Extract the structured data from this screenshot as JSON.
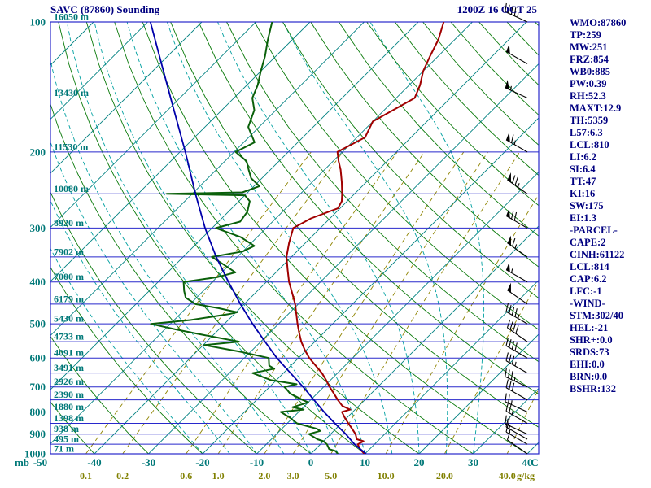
{
  "header": {
    "title": "SAVC (87860) Sounding",
    "datetime": "1200Z 16 OCT 25"
  },
  "indices": [
    "WMO:87860",
    "TP:259",
    "MW:251",
    "FRZ:854",
    "WB0:885",
    "PW:0.39",
    "RH:52.3",
    "MAXT:12.9",
    "TH:5359",
    "L57:6.3",
    "LCL:810",
    "LI:6.2",
    "SI:6.4",
    "TT:47",
    "KI:16",
    "SW:175",
    "EI:1.3",
    "-PARCEL-",
    "CAPE:2",
    "CINH:61122",
    "LCL:814",
    "CAP:6.2",
    "LFC:-1",
    "-WIND-",
    "STM:302/40",
    "HEL:-21",
    "SHR+:0.0",
    "SRDS:73",
    "EHI:0.0",
    "BRN:0.0",
    "BSHR:132"
  ],
  "axes": {
    "pressure_unit": "mb",
    "temp_unit": "C",
    "mixing_unit": "g/kg",
    "pressure_ticks": [
      100,
      200,
      300,
      400,
      500,
      600,
      700,
      800,
      900,
      1000
    ],
    "temp_ticks": [
      -50,
      -40,
      -30,
      -20,
      -10,
      0,
      10,
      20,
      30,
      40
    ],
    "mixing_ratio_ticks": [
      "0.1",
      "0.2",
      "0.6",
      "1.0",
      "2.0",
      "3.0",
      "5.0",
      "10.0",
      "20.0",
      "40.0"
    ],
    "heights": [
      {
        "p": 100,
        "label": "16050 m"
      },
      {
        "p": 150,
        "label": "13430 m"
      },
      {
        "p": 200,
        "label": "11530 m"
      },
      {
        "p": 250,
        "label": "10080 m"
      },
      {
        "p": 300,
        "label": "8920 m"
      },
      {
        "p": 350,
        "label": "7902 m"
      },
      {
        "p": 400,
        "label": "7000 m"
      },
      {
        "p": 450,
        "label": "6179 m"
      },
      {
        "p": 500,
        "label": "5430 m"
      },
      {
        "p": 550,
        "label": "4733 m"
      },
      {
        "p": 600,
        "label": "4091 m"
      },
      {
        "p": 650,
        "label": "3491 m"
      },
      {
        "p": 700,
        "label": "2926 m"
      },
      {
        "p": 750,
        "label": "2390 m"
      },
      {
        "p": 800,
        "label": "1880 m"
      },
      {
        "p": 850,
        "label": "1398 m"
      },
      {
        "p": 900,
        "label": "938 m"
      },
      {
        "p": 950,
        "label": "495 m"
      },
      {
        "p": 1000,
        "label": "71 m"
      }
    ]
  },
  "chart_data": {
    "type": "line",
    "chart_kind": "skew-t-log-p-sounding",
    "title": "SAVC (87860) Sounding",
    "valid_time": "1200Z 16 OCT 25",
    "x_axis": {
      "label": "C",
      "ticks": [
        -50,
        -40,
        -30,
        -20,
        -10,
        0,
        10,
        20,
        30,
        40
      ],
      "skew_deg": 45
    },
    "y_axis": {
      "label": "mb",
      "scale": "log",
      "range": [
        100,
        1000
      ],
      "ticks": [
        100,
        200,
        300,
        400,
        500,
        600,
        700,
        800,
        900,
        1000
      ]
    },
    "grid": {
      "isobars": {
        "min": 100,
        "max": 1000,
        "step": 50
      },
      "isotherms_c": {
        "min": -130,
        "max": 40,
        "step": 10
      },
      "dry_adiabats_c": {
        "min": -50,
        "max": 180,
        "step": 10
      },
      "moist_adiabats_c": {
        "min": -20,
        "max": 30,
        "step": 5
      },
      "mixing_ratio_gkg": [
        0.1,
        0.2,
        0.6,
        1.0,
        2.0,
        3.0,
        5.0,
        10.0,
        20.0,
        40.0
      ]
    },
    "colors": {
      "isobar": "#2828cc",
      "isotherm": "#008080",
      "dry_adiabat": "#0a7a0a",
      "moist_adiabat": "#00a0a0",
      "mixing_ratio": "#8f8400",
      "temperature": "#a00000",
      "dewpoint": "#0a600a",
      "parcel": "#0000aa",
      "barb": "#000000",
      "text_navy": "#000080",
      "text_teal": "#007878",
      "text_olive": "#808000"
    },
    "series": [
      {
        "name": "temperature",
        "color": "#a00000",
        "points": [
          [
            1000,
            9.9
          ],
          [
            975,
            8.2
          ],
          [
            950,
            6.9
          ],
          [
            935,
            7.4
          ],
          [
            925,
            5.8
          ],
          [
            900,
            4.6
          ],
          [
            875,
            3.0
          ],
          [
            850,
            1.3
          ],
          [
            825,
            -0.4
          ],
          [
            800,
            -2.0
          ],
          [
            790,
            -0.9
          ],
          [
            775,
            -3.0
          ],
          [
            750,
            -5.0
          ],
          [
            725,
            -6.9
          ],
          [
            700,
            -8.9
          ],
          [
            675,
            -10.8
          ],
          [
            650,
            -12.9
          ],
          [
            625,
            -15.4
          ],
          [
            600,
            -18.0
          ],
          [
            575,
            -20.3
          ],
          [
            550,
            -22.5
          ],
          [
            525,
            -24.5
          ],
          [
            500,
            -26.5
          ],
          [
            475,
            -28.5
          ],
          [
            450,
            -30.6
          ],
          [
            425,
            -33.1
          ],
          [
            400,
            -35.8
          ],
          [
            375,
            -38.3
          ],
          [
            350,
            -40.9
          ],
          [
            325,
            -43.0
          ],
          [
            300,
            -45.0
          ],
          [
            285,
            -43.5
          ],
          [
            270,
            -40.4
          ],
          [
            260,
            -41.0
          ],
          [
            250,
            -42.3
          ],
          [
            235,
            -44.5
          ],
          [
            220,
            -47.0
          ],
          [
            210,
            -49.0
          ],
          [
            200,
            -50.9
          ],
          [
            185,
            -48.5
          ],
          [
            170,
            -50.0
          ],
          [
            155,
            -47.5
          ],
          [
            150,
            -46.6
          ],
          [
            140,
            -48.0
          ],
          [
            130,
            -50.0
          ],
          [
            120,
            -51.5
          ],
          [
            110,
            -53.0
          ],
          [
            100,
            -55.3
          ]
        ]
      },
      {
        "name": "dewpoint",
        "color": "#0a600a",
        "points": [
          [
            1000,
            5.0
          ],
          [
            985,
            4.0
          ],
          [
            975,
            2.5
          ],
          [
            950,
            1.2
          ],
          [
            935,
            0.0
          ],
          [
            925,
            -1.5
          ],
          [
            900,
            -4.0
          ],
          [
            885,
            -2.5
          ],
          [
            875,
            -3.5
          ],
          [
            850,
            -8.2
          ],
          [
            825,
            -10.5
          ],
          [
            800,
            -13.3
          ],
          [
            790,
            -9.5
          ],
          [
            780,
            -12.0
          ],
          [
            760,
            -10.0
          ],
          [
            750,
            -11.5
          ],
          [
            725,
            -15.0
          ],
          [
            700,
            -17.2
          ],
          [
            690,
            -15.5
          ],
          [
            675,
            -21.0
          ],
          [
            650,
            -25.7
          ],
          [
            635,
            -22.5
          ],
          [
            625,
            -24.0
          ],
          [
            600,
            -25.5
          ],
          [
            580,
            -32.0
          ],
          [
            560,
            -39.8
          ],
          [
            550,
            -34.0
          ],
          [
            530,
            -42.0
          ],
          [
            515,
            -48.0
          ],
          [
            500,
            -53.6
          ],
          [
            490,
            -47.0
          ],
          [
            475,
            -41.0
          ],
          [
            470,
            -39.8
          ],
          [
            460,
            -44.0
          ],
          [
            450,
            -49.0
          ],
          [
            435,
            -52.0
          ],
          [
            420,
            -53.5
          ],
          [
            400,
            -55.3
          ],
          [
            390,
            -50.0
          ],
          [
            380,
            -47.5
          ],
          [
            365,
            -51.0
          ],
          [
            350,
            -54.7
          ],
          [
            340,
            -50.0
          ],
          [
            330,
            -48.9
          ],
          [
            315,
            -53.0
          ],
          [
            300,
            -59.3
          ],
          [
            290,
            -56.0
          ],
          [
            275,
            -56.5
          ],
          [
            260,
            -58.0
          ],
          [
            252,
            -60.0
          ],
          [
            250,
            -74.7
          ],
          [
            248,
            -61.0
          ],
          [
            240,
            -59.0
          ],
          [
            230,
            -62.0
          ],
          [
            220,
            -64.0
          ],
          [
            210,
            -66.0
          ],
          [
            200,
            -69.7
          ],
          [
            190,
            -68.0
          ],
          [
            175,
            -72.0
          ],
          [
            160,
            -74.0
          ],
          [
            150,
            -76.6
          ],
          [
            140,
            -78.0
          ],
          [
            130,
            -80.0
          ],
          [
            120,
            -82.0
          ],
          [
            110,
            -84.5
          ],
          [
            100,
            -87.0
          ]
        ]
      },
      {
        "name": "parcel",
        "color": "#0000aa",
        "points": [
          [
            1000,
            10.2
          ],
          [
            950,
            6.3
          ],
          [
            900,
            2.8
          ],
          [
            850,
            -1.2
          ],
          [
            800,
            -5.3
          ],
          [
            750,
            -9.4
          ],
          [
            700,
            -13.8
          ],
          [
            650,
            -18.7
          ],
          [
            600,
            -24.0
          ],
          [
            550,
            -29.2
          ],
          [
            500,
            -34.8
          ],
          [
            450,
            -40.7
          ],
          [
            400,
            -47.0
          ],
          [
            350,
            -53.9
          ],
          [
            300,
            -61.3
          ],
          [
            250,
            -69.4
          ],
          [
            200,
            -79.0
          ],
          [
            150,
            -91.7
          ],
          [
            100,
            -109.5
          ]
        ]
      }
    ],
    "wind_barbs": [
      {
        "p": 1000,
        "dir": 305,
        "spd": 10
      },
      {
        "p": 950,
        "dir": 300,
        "spd": 15
      },
      {
        "p": 925,
        "dir": 300,
        "spd": 15
      },
      {
        "p": 900,
        "dir": 295,
        "spd": 20
      },
      {
        "p": 850,
        "dir": 300,
        "spd": 25
      },
      {
        "p": 800,
        "dir": 295,
        "spd": 25
      },
      {
        "p": 750,
        "dir": 300,
        "spd": 30
      },
      {
        "p": 700,
        "dir": 295,
        "spd": 35
      },
      {
        "p": 650,
        "dir": 300,
        "spd": 35
      },
      {
        "p": 600,
        "dir": 300,
        "spd": 40
      },
      {
        "p": 550,
        "dir": 305,
        "spd": 40
      },
      {
        "p": 500,
        "dir": 300,
        "spd": 45
      },
      {
        "p": 450,
        "dir": 305,
        "spd": 50
      },
      {
        "p": 400,
        "dir": 300,
        "spd": 55
      },
      {
        "p": 350,
        "dir": 305,
        "spd": 65
      },
      {
        "p": 300,
        "dir": 300,
        "spd": 70
      },
      {
        "p": 250,
        "dir": 305,
        "spd": 75
      },
      {
        "p": 200,
        "dir": 300,
        "spd": 65
      },
      {
        "p": 150,
        "dir": 295,
        "spd": 55
      },
      {
        "p": 125,
        "dir": 300,
        "spd": 50
      },
      {
        "p": 100,
        "dir": 295,
        "spd": 45
      }
    ]
  }
}
